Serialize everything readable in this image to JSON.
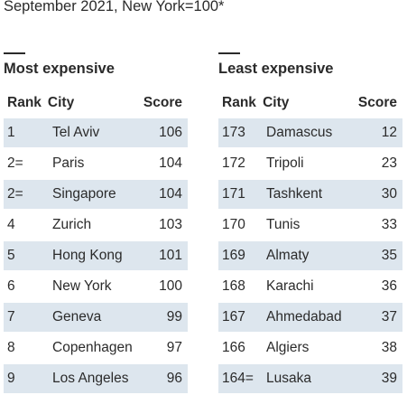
{
  "subtitle": "September 2021, New York=100*",
  "columns": {
    "rank": "Rank",
    "city": "City",
    "score": "Score"
  },
  "chart_data": {
    "type": "table",
    "title": "",
    "subtitle": "September 2021, New York=100*",
    "tables": [
      {
        "name": "Most expensive",
        "columns": [
          "Rank",
          "City",
          "Score"
        ],
        "rows": [
          {
            "rank": "1",
            "city": "Tel Aviv",
            "score": 106
          },
          {
            "rank": "2=",
            "city": "Paris",
            "score": 104
          },
          {
            "rank": "2=",
            "city": "Singapore",
            "score": 104
          },
          {
            "rank": "4",
            "city": "Zurich",
            "score": 103
          },
          {
            "rank": "5",
            "city": "Hong Kong",
            "score": 101
          },
          {
            "rank": "6",
            "city": "New York",
            "score": 100
          },
          {
            "rank": "7",
            "city": "Geneva",
            "score": 99
          },
          {
            "rank": "8",
            "city": "Copenhagen",
            "score": 97
          },
          {
            "rank": "9",
            "city": "Los Angeles",
            "score": 96
          }
        ]
      },
      {
        "name": "Least expensive",
        "columns": [
          "Rank",
          "City",
          "Score"
        ],
        "rows": [
          {
            "rank": "173",
            "city": "Damascus",
            "score": 12
          },
          {
            "rank": "172",
            "city": "Tripoli",
            "score": 23
          },
          {
            "rank": "171",
            "city": "Tashkent",
            "score": 30
          },
          {
            "rank": "170",
            "city": "Tunis",
            "score": 33
          },
          {
            "rank": "169",
            "city": "Almaty",
            "score": 35
          },
          {
            "rank": "168",
            "city": "Karachi",
            "score": 36
          },
          {
            "rank": "167",
            "city": "Ahmedabad",
            "score": 37
          },
          {
            "rank": "166",
            "city": "Algiers",
            "score": 38
          },
          {
            "rank": "164=",
            "city": "Lusaka",
            "score": 39
          }
        ]
      }
    ],
    "row_shading": "alternating",
    "shade_color": "#dde6ee"
  }
}
